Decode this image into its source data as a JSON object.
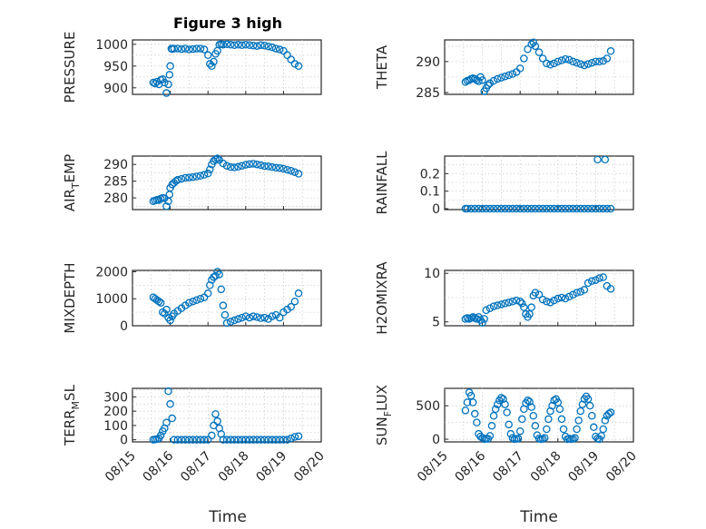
{
  "figure": {
    "title": "Figure 3 high",
    "xlabel": "Time",
    "date_ticks": [
      "08/15",
      "08/16",
      "08/17",
      "08/18",
      "08/19",
      "08/20"
    ],
    "marker_color": "#0072BD",
    "marker": "circle-open"
  },
  "chart_data": [
    {
      "type": "scatter",
      "ylabel": "PRESSURE",
      "ylim": [
        885,
        1010
      ],
      "yticks": [
        900,
        950,
        1000
      ],
      "grid": true,
      "x_days": [
        15.55,
        15.6,
        15.65,
        15.7,
        15.75,
        15.8,
        15.85,
        15.9,
        15.95,
        15.98,
        16.0,
        16.03,
        16.05,
        16.1,
        16.2,
        16.3,
        16.4,
        16.5,
        16.6,
        16.7,
        16.8,
        16.9,
        17.0,
        17.05,
        17.1,
        17.15,
        17.2,
        17.25,
        17.3,
        17.35,
        17.4,
        17.5,
        17.6,
        17.7,
        17.8,
        17.9,
        18.0,
        18.1,
        18.2,
        18.3,
        18.4,
        18.5,
        18.6,
        18.7,
        18.8,
        18.9,
        19.0,
        19.1,
        19.2,
        19.3,
        19.4
      ],
      "values": [
        912,
        910,
        914,
        908,
        918,
        920,
        912,
        888,
        908,
        930,
        950,
        990,
        989,
        990,
        990,
        989,
        990,
        988,
        989,
        990,
        990,
        988,
        975,
        955,
        950,
        960,
        978,
        985,
        999,
        1000,
        999,
        1000,
        999,
        998,
        999,
        998,
        999,
        998,
        997,
        996,
        998,
        997,
        995,
        993,
        990,
        988,
        985,
        975,
        965,
        955,
        950
      ]
    },
    {
      "type": "scatter",
      "ylabel": "THETA",
      "ylim": [
        284.7,
        293.5
      ],
      "yticks": [
        285,
        290
      ],
      "grid": true,
      "x_days": [
        15.55,
        15.6,
        15.65,
        15.7,
        15.75,
        15.8,
        15.85,
        15.9,
        15.95,
        16.0,
        16.05,
        16.1,
        16.15,
        16.2,
        16.3,
        16.4,
        16.5,
        16.6,
        16.7,
        16.8,
        16.9,
        17.0,
        17.1,
        17.2,
        17.3,
        17.35,
        17.4,
        17.5,
        17.6,
        17.7,
        17.8,
        17.9,
        18.0,
        18.1,
        18.2,
        18.3,
        18.4,
        18.5,
        18.6,
        18.7,
        18.8,
        18.9,
        19.0,
        19.1,
        19.2,
        19.3,
        19.4
      ],
      "values": [
        286.7,
        286.9,
        287.0,
        287.2,
        287.3,
        287.2,
        287.0,
        286.8,
        287.5,
        287.0,
        285.2,
        285.7,
        286.2,
        286.5,
        286.9,
        287.2,
        287.4,
        287.6,
        287.8,
        288.0,
        288.3,
        288.9,
        290.5,
        292.0,
        292.8,
        293.1,
        292.5,
        291.5,
        290.5,
        289.7,
        289.5,
        289.7,
        290.0,
        290.2,
        290.4,
        290.3,
        290.0,
        289.8,
        289.6,
        289.4,
        289.6,
        289.8,
        290.0,
        290.0,
        290.1,
        290.5,
        291.7
      ]
    },
    {
      "type": "scatter",
      "ylabel": "AIR",
      "ylabel_sub": "T",
      "ylabel_rest": "EMP",
      "ylim": [
        276.5,
        292.5
      ],
      "yticks": [
        280,
        285,
        290
      ],
      "grid": true,
      "x_days": [
        15.55,
        15.6,
        15.65,
        15.7,
        15.75,
        15.8,
        15.85,
        15.9,
        15.95,
        15.98,
        16.0,
        16.05,
        16.1,
        16.15,
        16.2,
        16.3,
        16.4,
        16.5,
        16.6,
        16.7,
        16.8,
        16.9,
        17.0,
        17.05,
        17.1,
        17.15,
        17.2,
        17.25,
        17.3,
        17.4,
        17.5,
        17.6,
        17.7,
        17.8,
        17.9,
        18.0,
        18.1,
        18.2,
        18.3,
        18.4,
        18.5,
        18.6,
        18.7,
        18.8,
        18.9,
        19.0,
        19.1,
        19.2,
        19.3,
        19.4
      ],
      "values": [
        279.0,
        279.2,
        279.4,
        279.3,
        279.8,
        280.0,
        279.9,
        277.5,
        279.0,
        281.0,
        283.0,
        284.0,
        284.5,
        285.0,
        285.4,
        285.7,
        286.0,
        286.1,
        286.2,
        286.4,
        286.6,
        286.9,
        287.3,
        288.5,
        290.0,
        291.0,
        291.5,
        291.8,
        291.3,
        290.3,
        289.6,
        289.2,
        289.1,
        289.3,
        289.6,
        289.9,
        290.1,
        290.2,
        290.0,
        289.8,
        289.5,
        289.4,
        289.2,
        289.0,
        288.9,
        288.7,
        288.4,
        288.1,
        287.7,
        287.2
      ]
    },
    {
      "type": "scatter",
      "ylabel": "RAINFALL",
      "ylim": [
        -0.005,
        0.3
      ],
      "yticks": [
        0,
        0.1,
        0.2
      ],
      "grid": true,
      "x_days": [
        15.55,
        15.6,
        15.7,
        15.8,
        15.9,
        16.0,
        16.1,
        16.2,
        16.3,
        16.4,
        16.5,
        16.6,
        16.7,
        16.8,
        16.9,
        17.0,
        17.1,
        17.2,
        17.3,
        17.4,
        17.5,
        17.6,
        17.7,
        17.8,
        17.9,
        18.0,
        18.1,
        18.2,
        18.3,
        18.4,
        18.5,
        18.6,
        18.7,
        18.8,
        18.9,
        19.0,
        19.05,
        19.1,
        19.2,
        19.25,
        19.3,
        19.4
      ],
      "values": [
        0,
        0,
        0,
        0,
        0,
        0,
        0,
        0,
        0,
        0,
        0,
        0,
        0,
        0,
        0,
        0,
        0,
        0,
        0,
        0,
        0,
        0,
        0,
        0,
        0,
        0,
        0,
        0,
        0,
        0,
        0,
        0,
        0,
        0,
        0,
        0,
        0.28,
        0,
        0,
        0.28,
        0,
        0
      ]
    },
    {
      "type": "scatter",
      "ylabel": "MIXDEPTH",
      "ylim": [
        0,
        2050
      ],
      "yticks": [
        0,
        1000,
        2000
      ],
      "grid": true,
      "x_days": [
        15.55,
        15.6,
        15.65,
        15.7,
        15.75,
        15.8,
        15.85,
        15.9,
        15.95,
        16.0,
        16.05,
        16.1,
        16.2,
        16.3,
        16.4,
        16.5,
        16.6,
        16.7,
        16.8,
        16.9,
        17.0,
        17.05,
        17.1,
        17.15,
        17.2,
        17.25,
        17.3,
        17.35,
        17.4,
        17.45,
        17.5,
        17.6,
        17.7,
        17.8,
        17.9,
        18.0,
        18.1,
        18.2,
        18.3,
        18.4,
        18.5,
        18.6,
        18.7,
        18.8,
        18.9,
        19.0,
        19.1,
        19.2,
        19.3,
        19.4
      ],
      "values": [
        1050,
        1000,
        950,
        900,
        850,
        500,
        450,
        600,
        300,
        200,
        350,
        450,
        550,
        650,
        750,
        850,
        900,
        950,
        1000,
        1050,
        1200,
        1500,
        1700,
        1800,
        1850,
        2000,
        1900,
        1350,
        750,
        400,
        100,
        150,
        200,
        250,
        300,
        350,
        300,
        350,
        320,
        280,
        300,
        250,
        350,
        400,
        300,
        500,
        600,
        700,
        900,
        1200
      ]
    },
    {
      "type": "scatter",
      "ylabel": "H2OMIXRA",
      "ylim": [
        4.6,
        10.3
      ],
      "yticks": [
        5,
        10
      ],
      "grid": true,
      "x_days": [
        15.55,
        15.6,
        15.65,
        15.7,
        15.75,
        15.8,
        15.85,
        15.9,
        15.95,
        16.0,
        16.05,
        16.1,
        16.2,
        16.3,
        16.4,
        16.5,
        16.6,
        16.7,
        16.8,
        16.9,
        17.0,
        17.05,
        17.1,
        17.15,
        17.2,
        17.25,
        17.3,
        17.35,
        17.4,
        17.5,
        17.6,
        17.7,
        17.8,
        17.9,
        18.0,
        18.1,
        18.2,
        18.3,
        18.4,
        18.5,
        18.6,
        18.7,
        18.8,
        18.9,
        19.0,
        19.1,
        19.2,
        19.3,
        19.4
      ],
      "values": [
        5.3,
        5.4,
        5.3,
        5.4,
        5.5,
        5.4,
        5.3,
        5.5,
        5.2,
        4.9,
        5.3,
        6.2,
        6.4,
        6.6,
        6.7,
        6.8,
        6.9,
        7.0,
        7.1,
        7.2,
        7.1,
        6.9,
        6.5,
        5.8,
        5.5,
        5.8,
        6.5,
        7.7,
        8.0,
        7.8,
        7.3,
        7.1,
        7.0,
        7.2,
        7.4,
        7.5,
        7.4,
        7.6,
        7.8,
        8.0,
        8.1,
        8.3,
        9.0,
        9.2,
        9.3,
        9.5,
        9.6,
        8.7,
        8.4
      ]
    },
    {
      "type": "scatter",
      "ylabel": "TERR",
      "ylabel_sub": "M",
      "ylabel_rest": "SL",
      "ylim": [
        -15,
        360
      ],
      "yticks": [
        0,
        100,
        200,
        300
      ],
      "grid": true,
      "x_days": [
        15.55,
        15.6,
        15.65,
        15.7,
        15.75,
        15.8,
        15.85,
        15.9,
        15.95,
        16.0,
        16.05,
        16.1,
        16.2,
        16.3,
        16.4,
        16.5,
        16.6,
        16.7,
        16.8,
        16.9,
        17.0,
        17.1,
        17.15,
        17.2,
        17.25,
        17.3,
        17.35,
        17.4,
        17.5,
        17.6,
        17.7,
        17.8,
        17.9,
        18.0,
        18.1,
        18.2,
        18.3,
        18.4,
        18.5,
        18.6,
        18.7,
        18.8,
        18.9,
        19.0,
        19.1,
        19.2,
        19.3,
        19.4
      ],
      "values": [
        0,
        2,
        5,
        10,
        30,
        60,
        80,
        120,
        340,
        250,
        150,
        0,
        0,
        0,
        0,
        0,
        0,
        0,
        0,
        0,
        0,
        30,
        100,
        180,
        130,
        80,
        40,
        0,
        0,
        0,
        0,
        0,
        0,
        0,
        0,
        0,
        0,
        0,
        0,
        0,
        0,
        0,
        0,
        0,
        0,
        10,
        20,
        25
      ]
    },
    {
      "type": "scatter",
      "ylabel": "SUN",
      "ylabel_sub": "F",
      "ylabel_rest": "LUX",
      "ylim": [
        -40,
        760
      ],
      "yticks": [
        0,
        500
      ],
      "grid": true,
      "x_days": [
        15.55,
        15.6,
        15.65,
        15.7,
        15.75,
        15.8,
        15.85,
        15.9,
        15.95,
        16.0,
        16.05,
        16.1,
        16.15,
        16.2,
        16.25,
        16.3,
        16.35,
        16.4,
        16.45,
        16.5,
        16.55,
        16.6,
        16.65,
        16.7,
        16.75,
        16.8,
        16.85,
        16.9,
        16.95,
        17.0,
        17.05,
        17.1,
        17.15,
        17.2,
        17.25,
        17.3,
        17.35,
        17.4,
        17.45,
        17.5,
        17.55,
        17.6,
        17.65,
        17.7,
        17.75,
        17.8,
        17.85,
        17.9,
        17.95,
        18.0,
        18.05,
        18.1,
        18.15,
        18.2,
        18.25,
        18.3,
        18.35,
        18.4,
        18.45,
        18.5,
        18.55,
        18.6,
        18.65,
        18.7,
        18.75,
        18.8,
        18.85,
        18.9,
        18.95,
        19.0,
        19.05,
        19.1,
        19.15,
        19.2,
        19.25,
        19.3,
        19.35,
        19.4
      ],
      "values": [
        430,
        550,
        700,
        650,
        550,
        380,
        250,
        80,
        40,
        20,
        0,
        10,
        5,
        50,
        200,
        350,
        450,
        520,
        580,
        620,
        600,
        520,
        400,
        220,
        80,
        20,
        0,
        5,
        10,
        120,
        300,
        450,
        540,
        580,
        560,
        480,
        350,
        200,
        60,
        10,
        0,
        5,
        20,
        150,
        300,
        420,
        500,
        580,
        600,
        550,
        450,
        300,
        150,
        40,
        0,
        10,
        0,
        5,
        20,
        150,
        280,
        420,
        520,
        600,
        640,
        600,
        500,
        350,
        180,
        40,
        10,
        0,
        50,
        150,
        280,
        350,
        380,
        400
      ]
    }
  ]
}
